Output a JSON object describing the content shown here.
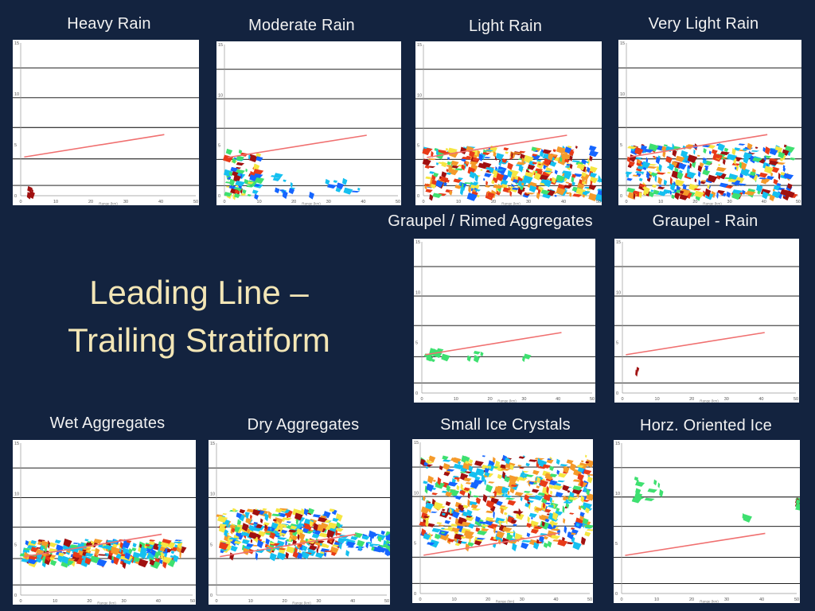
{
  "slide": {
    "title_lines": [
      "Leading Line –",
      "Trailing Stratiform"
    ]
  },
  "axes": {
    "x_ticks": [
      "0",
      "10",
      "20",
      "30",
      "40",
      "50"
    ],
    "y_ticks": [
      "15",
      "10",
      "5",
      "0"
    ],
    "x_label": "Range (km)"
  },
  "colors": {
    "background": "#13233f",
    "title": "#f3e6b6",
    "panel_title": "#f2f2f2",
    "melting_line": "#f07070",
    "rain_palette": [
      "#1565ff",
      "#15c0f0",
      "#3ee070",
      "#f5e642",
      "#f59a2a",
      "#e83a18",
      "#a01010"
    ]
  },
  "panels": [
    {
      "id": "heavy-rain",
      "title": "Heavy Rain"
    },
    {
      "id": "moderate-rain",
      "title": "Moderate Rain"
    },
    {
      "id": "light-rain",
      "title": "Light Rain"
    },
    {
      "id": "very-light-rain",
      "title": "Very Light Rain"
    },
    {
      "id": "graupel-rimed",
      "title": "Graupel / Rimed Aggregates"
    },
    {
      "id": "graupel-rain",
      "title": "Graupel - Rain"
    },
    {
      "id": "wet-aggregates",
      "title": "Wet Aggregates"
    },
    {
      "id": "dry-aggregates",
      "title": "Dry Aggregates"
    },
    {
      "id": "small-ice",
      "title": "Small Ice Crystals"
    },
    {
      "id": "horz-ice",
      "title": "Horz. Oriented Ice"
    }
  ]
}
